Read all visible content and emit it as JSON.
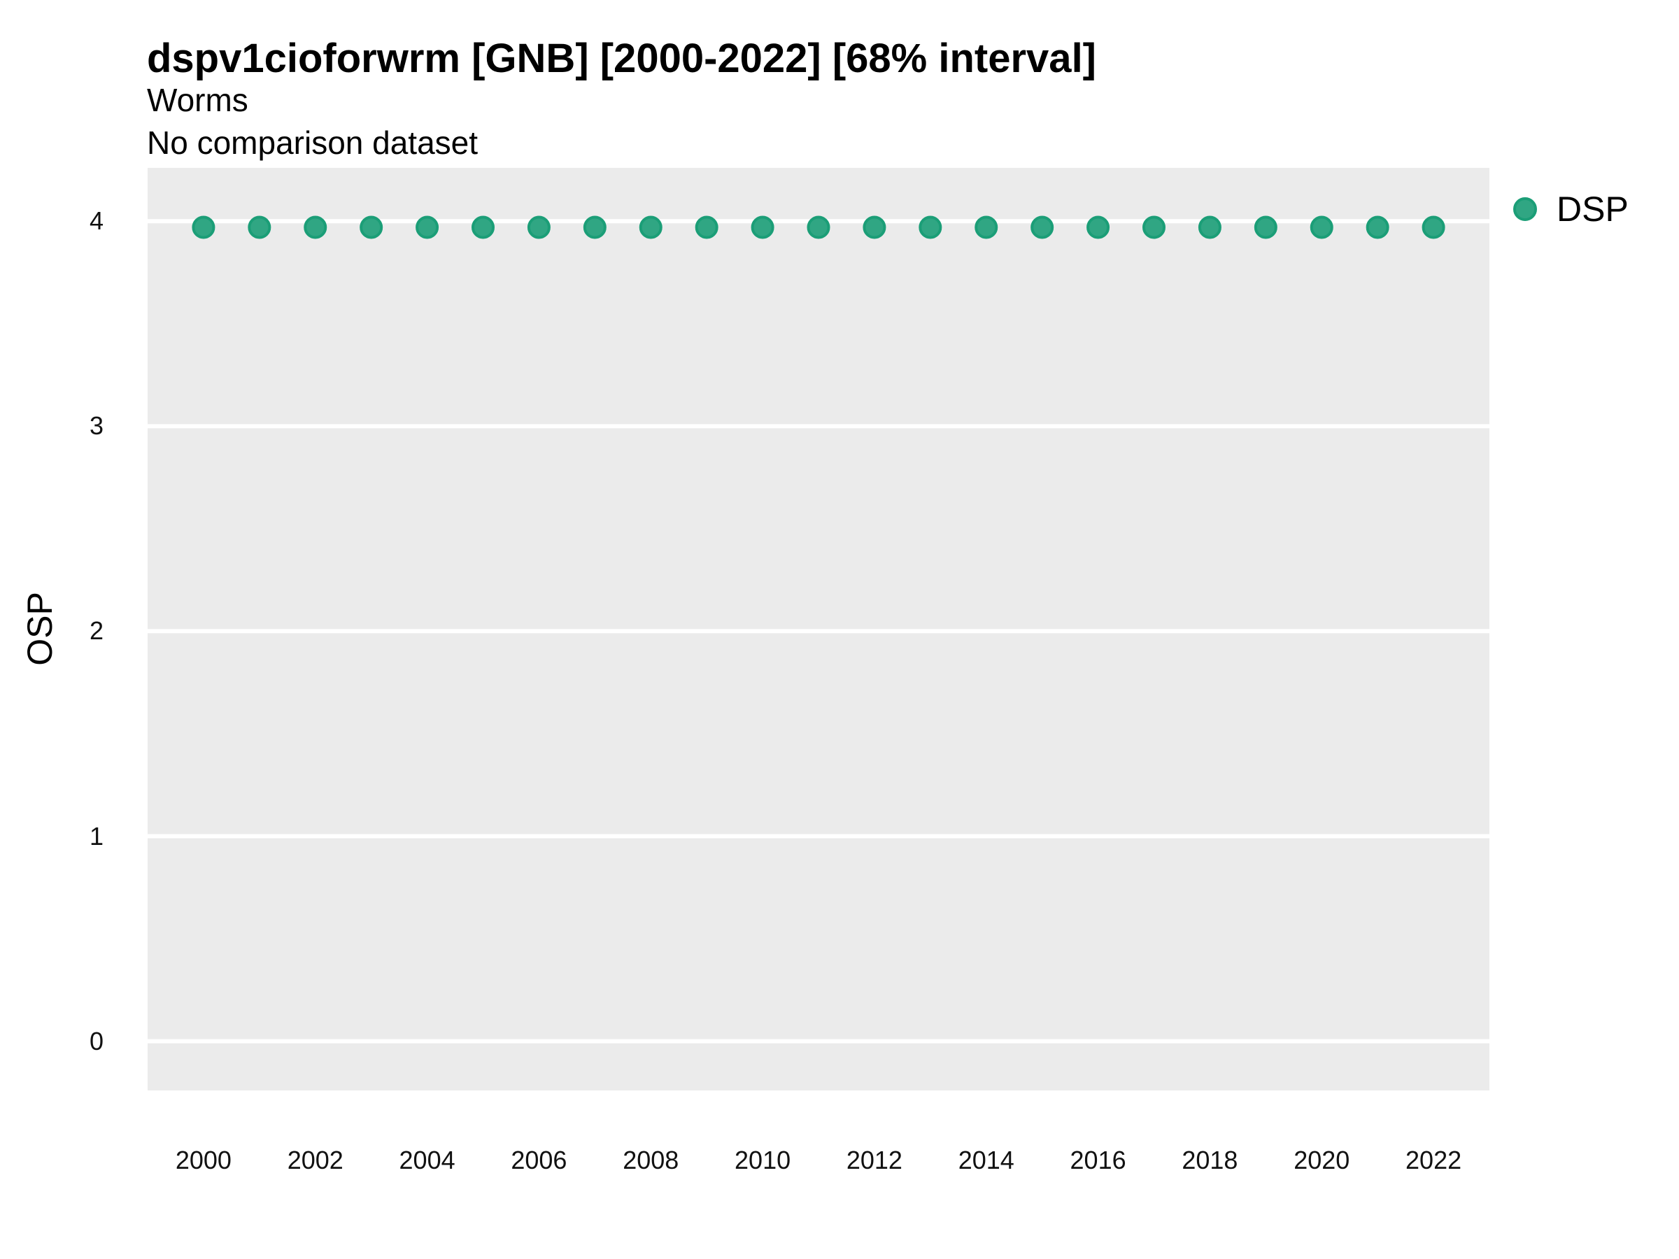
{
  "chart_data": {
    "type": "scatter",
    "title": "dspv1cioforwrm [GNB] [2000-2022] [68% interval]",
    "subtitle": "Worms",
    "comparison_note": "No comparison dataset",
    "xlabel": "",
    "ylabel": "OSP",
    "xlim": [
      1999,
      2023
    ],
    "ylim": [
      -0.24,
      4.26
    ],
    "x_ticks": [
      2000,
      2002,
      2004,
      2006,
      2008,
      2010,
      2012,
      2014,
      2016,
      2018,
      2020,
      2022
    ],
    "y_ticks": [
      0,
      1,
      2,
      3,
      4
    ],
    "grid": "horizontal major gridlines only, white lines on light gray panel",
    "legend_position": "right-top",
    "legend": [
      {
        "label": "DSP",
        "color": "#30A683",
        "border_color": "#1B9E77"
      }
    ],
    "series": [
      {
        "name": "DSP",
        "marker": "circle",
        "color": "#30A683",
        "border_color": "#1B9E77",
        "x": [
          2000,
          2001,
          2002,
          2003,
          2004,
          2005,
          2006,
          2007,
          2008,
          2009,
          2010,
          2011,
          2012,
          2013,
          2014,
          2015,
          2016,
          2017,
          2018,
          2019,
          2020,
          2021,
          2022
        ],
        "y": [
          3.97,
          3.97,
          3.97,
          3.97,
          3.97,
          3.97,
          3.97,
          3.97,
          3.97,
          3.97,
          3.97,
          3.97,
          3.97,
          3.97,
          3.97,
          3.97,
          3.97,
          3.97,
          3.97,
          3.97,
          3.97,
          3.97,
          3.97
        ]
      }
    ],
    "colors": {
      "panel_background": "#EBEBEB",
      "gridline": "#FFFFFF",
      "text": "#000000"
    }
  }
}
